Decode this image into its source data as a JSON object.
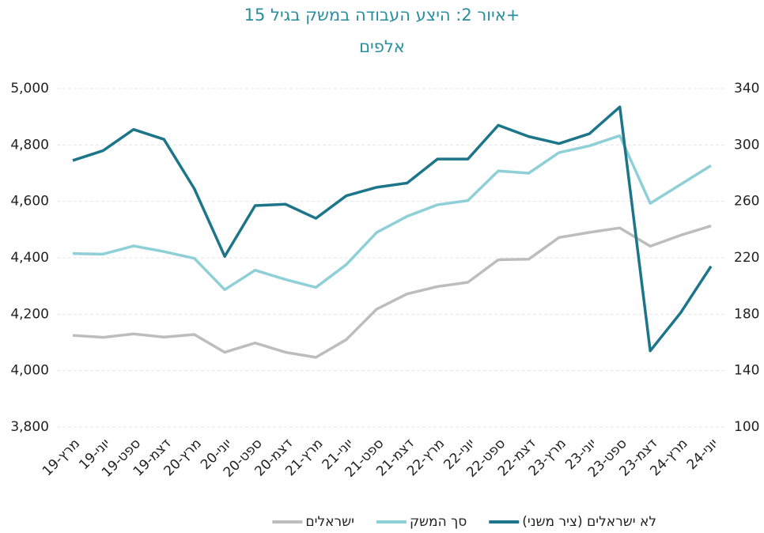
{
  "chart_data": {
    "type": "line",
    "title": "איור 2: היצע העבודה במשק בגיל 15+",
    "subtitle": "אלפים",
    "categories": [
      "מרץ-19",
      "יוני-19",
      "ספט-19",
      "דצמ-19",
      "מרץ-20",
      "יוני-20",
      "ספט-20",
      "דצמ-20",
      "מרץ-21",
      "יוני-21",
      "ספט-21",
      "דצמ-21",
      "מרץ-22",
      "יוני-22",
      "ספט-22",
      "דצמ-22",
      "מרץ-23",
      "יוני-23",
      "ספט-23",
      "דצמ-23",
      "מרץ-24",
      "יוני-24"
    ],
    "series": [
      {
        "name": "לא ישראלים (ציר משני)",
        "color": "#1c7589",
        "axis": "y2",
        "values": [
          289,
          296,
          311,
          304,
          269,
          221,
          257,
          258,
          248,
          264,
          270,
          273,
          290,
          290,
          314,
          306,
          301,
          308,
          327,
          154,
          181,
          214
        ]
      },
      {
        "name": "סך המשק",
        "color": "#8fd0d8",
        "values": [
          4415,
          4413,
          4442,
          4422,
          4398,
          4287,
          4356,
          4323,
          4295,
          4376,
          4490,
          4547,
          4588,
          4603,
          4708,
          4700,
          4773,
          4797,
          4833,
          4593,
          4660,
          4727
        ]
      },
      {
        "name": "ישראלים",
        "color": "#bdbdbd",
        "values": [
          4125,
          4118,
          4130,
          4119,
          4128,
          4065,
          4098,
          4065,
          4047,
          4110,
          4218,
          4272,
          4298,
          4313,
          4393,
          4395,
          4472,
          4490,
          4506,
          4441,
          4480,
          4513
        ]
      }
    ],
    "ylim": [
      3800,
      5000
    ],
    "yticks": [
      {
        "value": 3800,
        "label": "3,800"
      },
      {
        "value": 4000,
        "label": "4,000"
      },
      {
        "value": 4200,
        "label": "4,200"
      },
      {
        "value": 4400,
        "label": "4,400"
      },
      {
        "value": 4600,
        "label": "4,600"
      },
      {
        "value": 4800,
        "label": "4,800"
      },
      {
        "value": 5000,
        "label": "5,000"
      }
    ],
    "y2lim": [
      100,
      340
    ],
    "y2ticks": [
      100,
      140,
      180,
      220,
      260,
      300,
      340
    ],
    "grid": true,
    "legend": "bottom"
  }
}
